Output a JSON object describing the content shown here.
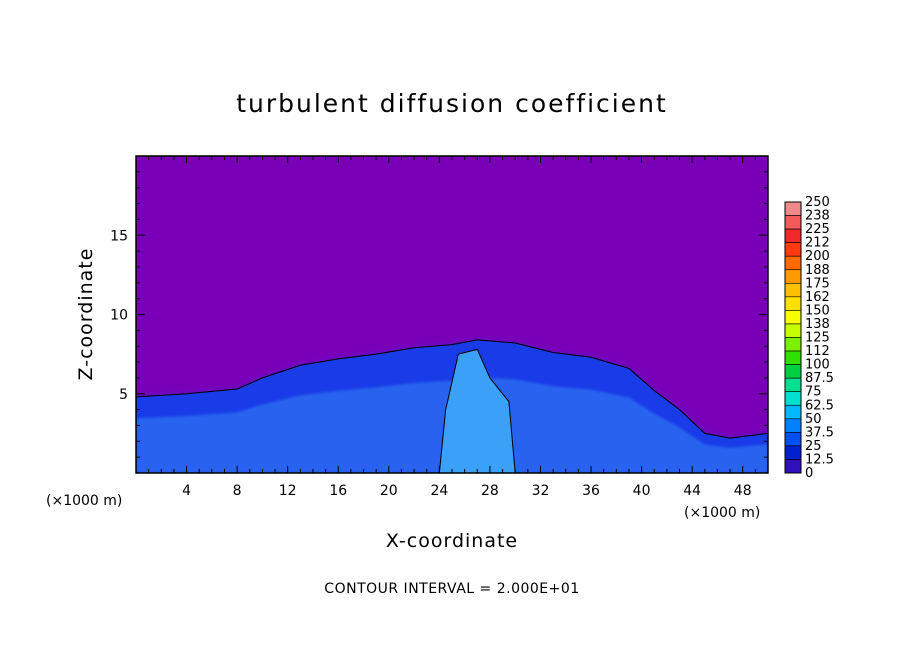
{
  "chart_data": {
    "type": "heatmap",
    "title": "turbulent diffusion coefficient",
    "xlabel": "X-coordinate",
    "ylabel": "Z-coordinate",
    "x_unit_left": "(×1000 m)",
    "x_unit_right": "(×1000 m)",
    "xlim": [
      0,
      50
    ],
    "ylim": [
      0,
      20
    ],
    "x_ticks": [
      4,
      8,
      12,
      16,
      20,
      24,
      28,
      32,
      36,
      40,
      44,
      48
    ],
    "y_ticks": [
      5,
      10,
      15
    ],
    "footer": "CONTOUR INTERVAL = 2.000E+01",
    "colorbar": {
      "levels": [
        "250",
        "238",
        "225",
        "212",
        "200",
        "188",
        "175",
        "162",
        "150",
        "138",
        "125",
        "112",
        "100",
        "87.5",
        "75",
        "62.5",
        "50",
        "37.5",
        "25",
        "12.5",
        "0"
      ],
      "colors": [
        "#f08a8a",
        "#f35b5b",
        "#f02a2a",
        "#ff3a10",
        "#ff6a00",
        "#ff9a00",
        "#ffc000",
        "#ffe000",
        "#f8ff00",
        "#c8ff00",
        "#78f000",
        "#30e000",
        "#00d040",
        "#00e090",
        "#00e0d0",
        "#00b8ff",
        "#0080ff",
        "#0050f0",
        "#0020d0",
        "#3010b8",
        "#7a00b8"
      ]
    },
    "field": {
      "background_value": 0,
      "background_color": "#7a00b8",
      "turbulent_layer_top_profile": [
        {
          "x": 0,
          "z": 4.8
        },
        {
          "x": 4,
          "z": 5.0
        },
        {
          "x": 8,
          "z": 5.3
        },
        {
          "x": 10,
          "z": 6.0
        },
        {
          "x": 13,
          "z": 6.8
        },
        {
          "x": 16,
          "z": 7.2
        },
        {
          "x": 19,
          "z": 7.5
        },
        {
          "x": 22,
          "z": 7.9
        },
        {
          "x": 25,
          "z": 8.1
        },
        {
          "x": 27,
          "z": 8.4
        },
        {
          "x": 30,
          "z": 8.2
        },
        {
          "x": 33,
          "z": 7.6
        },
        {
          "x": 36,
          "z": 7.3
        },
        {
          "x": 39,
          "z": 6.6
        },
        {
          "x": 41,
          "z": 5.2
        },
        {
          "x": 43,
          "z": 4.0
        },
        {
          "x": 45,
          "z": 2.5
        },
        {
          "x": 47,
          "z": 2.2
        },
        {
          "x": 50,
          "z": 2.5
        }
      ],
      "strong_plume_region": [
        {
          "x": 24,
          "z": 0
        },
        {
          "x": 24.5,
          "z": 4
        },
        {
          "x": 25.5,
          "z": 7.5
        },
        {
          "x": 27,
          "z": 7.8
        },
        {
          "x": 28,
          "z": 6
        },
        {
          "x": 29.5,
          "z": 4.5
        },
        {
          "x": 30,
          "z": 0
        }
      ]
    }
  }
}
